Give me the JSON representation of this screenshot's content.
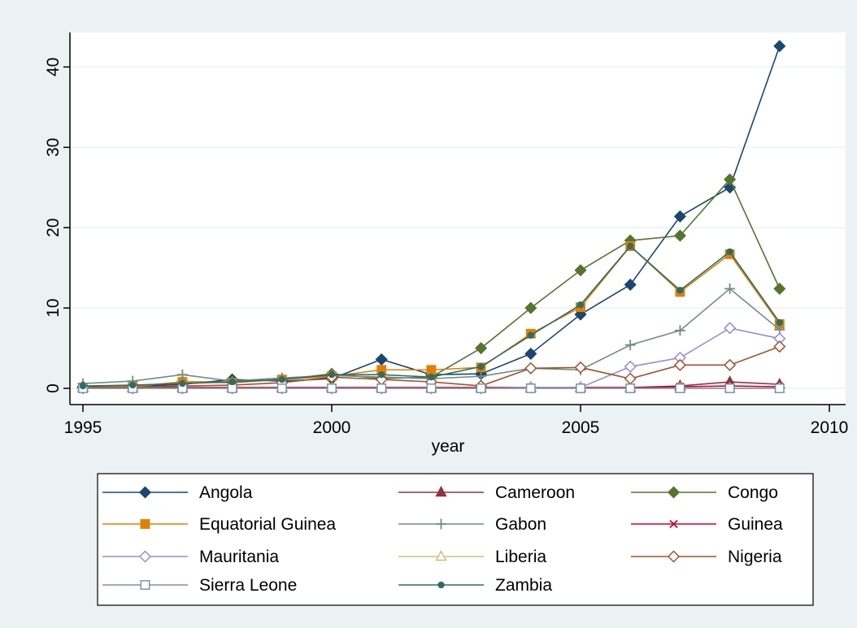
{
  "chart_data": {
    "type": "line",
    "xlabel": "year",
    "ylabel": "",
    "xlim": [
      1995,
      2010
    ],
    "ylim": [
      0,
      45
    ],
    "x_ticks": [
      1995,
      2000,
      2005,
      2010
    ],
    "y_ticks": [
      0,
      10,
      20,
      30,
      40
    ],
    "grid": true,
    "legend_position": "bottom",
    "legend_columns": 3,
    "x": [
      1995,
      1996,
      1997,
      1998,
      1999,
      2000,
      2001,
      2002,
      2003,
      2004,
      2005,
      2006,
      2007,
      2008,
      2009
    ],
    "series": [
      {
        "name": "Angola",
        "color": "#1a476f",
        "marker": "diamond",
        "filled": true,
        "values": [
          0.2,
          0.2,
          0.5,
          1.1,
          0.9,
          1.2,
          3.6,
          1.7,
          1.8,
          4.3,
          9.2,
          12.9,
          21.4,
          25.0,
          42.6
        ]
      },
      {
        "name": "Cameroon",
        "color": "#90353b",
        "marker": "triangle",
        "filled": true,
        "values": [
          0.1,
          0.1,
          0.1,
          0.1,
          0.1,
          0.1,
          0.1,
          0.1,
          0.1,
          0.1,
          0.1,
          0.1,
          0.3,
          0.8,
          0.5
        ]
      },
      {
        "name": "Congo",
        "color": "#55752f",
        "marker": "diamond",
        "filled": true,
        "values": [
          0.2,
          0.2,
          0.8,
          0.8,
          1.1,
          1.8,
          1.2,
          1.4,
          5.0,
          10.0,
          14.7,
          18.4,
          19.0,
          26.0,
          12.4
        ]
      },
      {
        "name": "Equatorial Guinea",
        "color": "#e37e00",
        "marker": "square",
        "filled": true,
        "values": [
          0.1,
          0.2,
          0.8,
          0.7,
          1.1,
          1.5,
          2.3,
          2.3,
          2.6,
          6.8,
          10.1,
          17.7,
          12.0,
          16.7,
          8.0
        ]
      },
      {
        "name": "Gabon",
        "color": "#6e8e84",
        "marker": "plus",
        "filled": false,
        "values": [
          0.6,
          0.9,
          1.7,
          0.9,
          1.3,
          1.6,
          1.4,
          1.2,
          1.5,
          2.5,
          2.3,
          5.4,
          7.2,
          12.4,
          7.3
        ]
      },
      {
        "name": "Guinea",
        "color": "#c10534",
        "marker": "x",
        "filled": false,
        "values": [
          0.1,
          0.1,
          0.1,
          0.1,
          0.1,
          0.1,
          0.1,
          0.1,
          0.1,
          0.1,
          0.1,
          0.1,
          0.2,
          0.3,
          0.2
        ]
      },
      {
        "name": "Mauritania",
        "color": "#938dd2",
        "marker": "diamond",
        "filled": false,
        "values": [
          0.0,
          0.0,
          0.0,
          0.0,
          0.0,
          0.0,
          0.0,
          0.0,
          0.0,
          0.1,
          0.1,
          2.7,
          3.8,
          7.5,
          6.2
        ]
      },
      {
        "name": "Liberia",
        "color": "#cac27e",
        "marker": "triangle",
        "filled": false,
        "values": [
          0.0,
          0.0,
          0.0,
          0.0,
          0.0,
          0.0,
          0.0,
          0.0,
          0.0,
          0.0,
          0.0,
          0.0,
          0.0,
          0.0,
          0.0
        ]
      },
      {
        "name": "Nigeria",
        "color": "#a0522d",
        "marker": "diamond",
        "filled": false,
        "values": [
          0.1,
          0.1,
          0.3,
          0.4,
          0.7,
          1.4,
          1.1,
          0.8,
          0.3,
          2.5,
          2.6,
          1.2,
          2.9,
          2.9,
          5.2
        ]
      },
      {
        "name": "Sierra Leone",
        "color": "#7b92a8",
        "marker": "square",
        "filled": false,
        "values": [
          0.0,
          0.0,
          0.0,
          0.0,
          0.0,
          0.0,
          0.0,
          0.0,
          0.0,
          0.0,
          0.0,
          0.0,
          0.0,
          0.0,
          0.0
        ]
      },
      {
        "name": "Zambia",
        "color": "#2d6d66",
        "marker": "dot",
        "filled": true,
        "values": [
          0.3,
          0.4,
          0.6,
          0.8,
          1.1,
          1.7,
          1.7,
          1.4,
          2.7,
          6.6,
          10.4,
          17.7,
          12.2,
          17.0,
          8.2
        ]
      }
    ]
  }
}
